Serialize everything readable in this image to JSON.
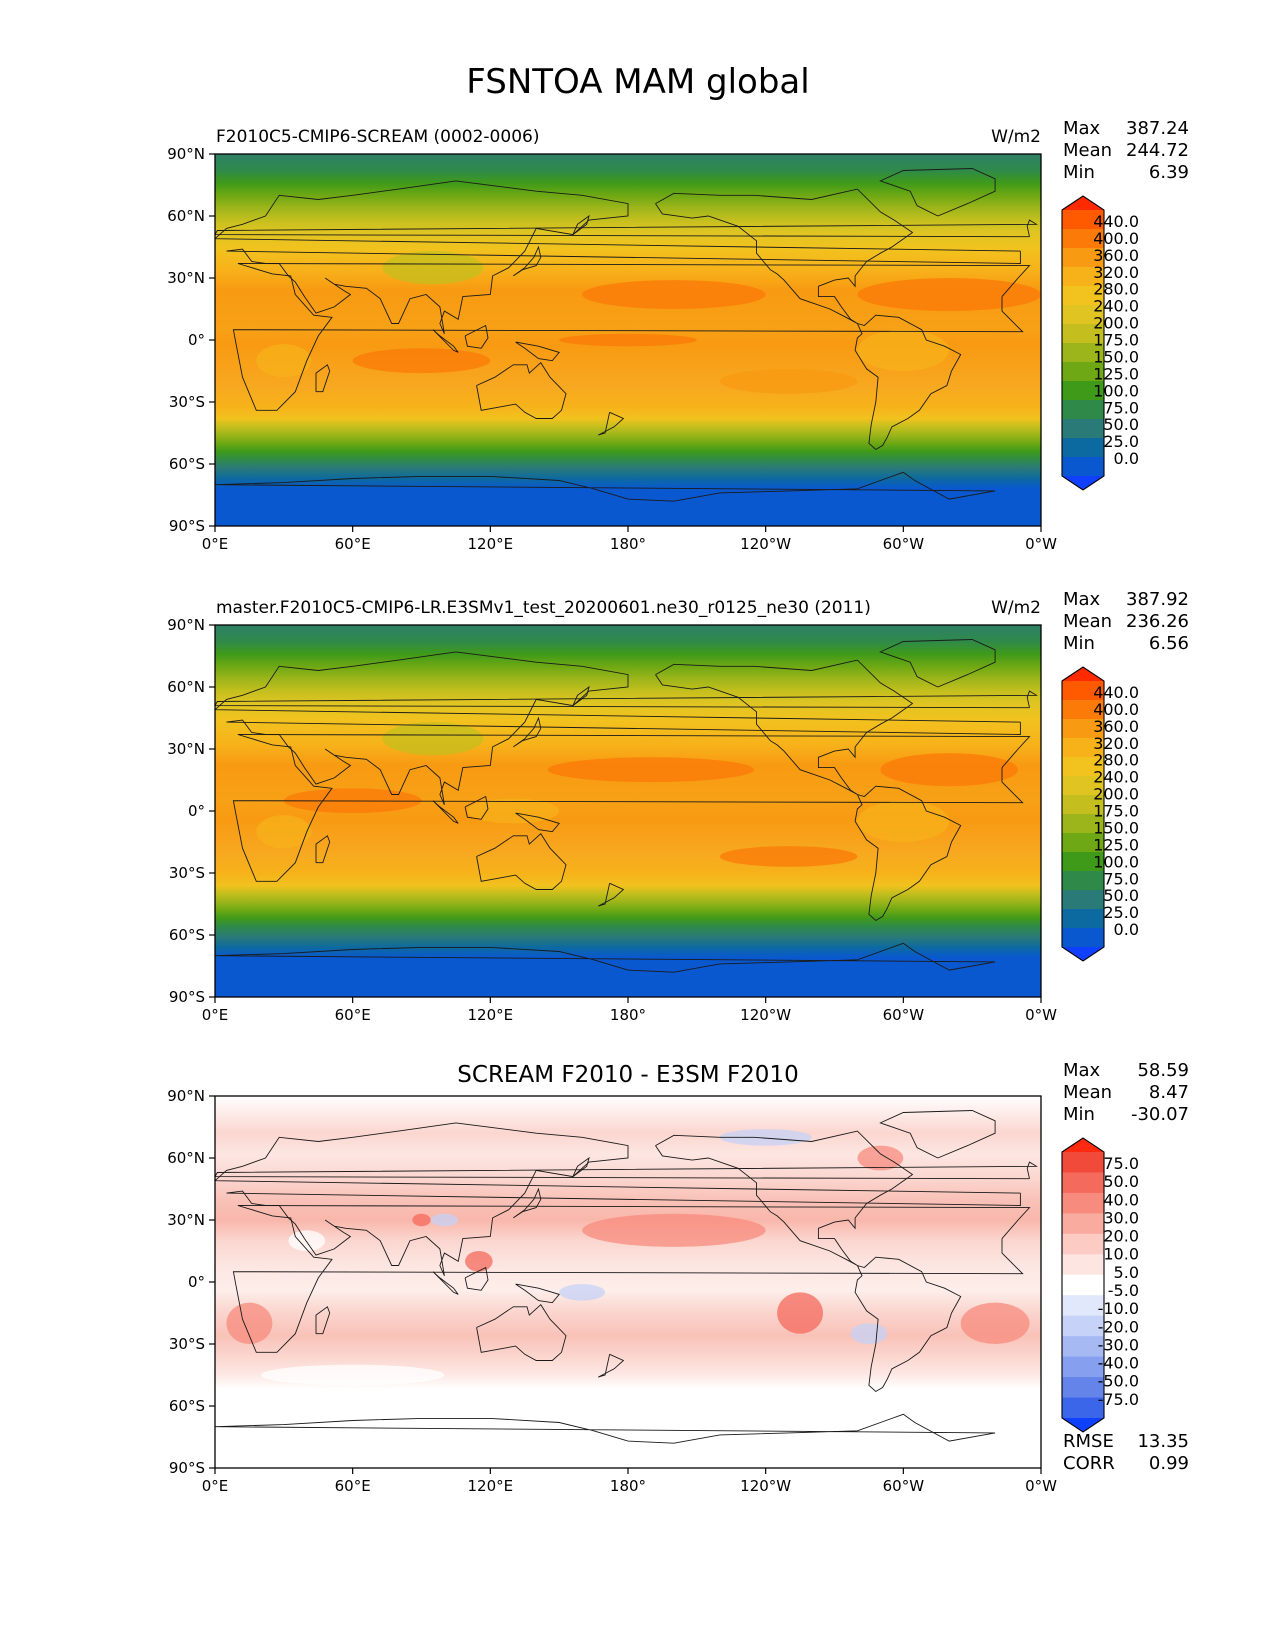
{
  "figure": {
    "title": "FSNTOA MAM global"
  },
  "axes": {
    "lat_ticks": [
      "90°N",
      "60°N",
      "30°N",
      "0°",
      "30°S",
      "60°S",
      "90°S"
    ],
    "lon_ticks": [
      "0°E",
      "60°E",
      "120°E",
      "180°",
      "120°W",
      "60°W",
      "0°W"
    ]
  },
  "panels": [
    {
      "id": "test",
      "title_left": "F2010C5-CMIP6-SCREAM (0002-0006)",
      "title_center": "",
      "units": "W/m2",
      "stats": [
        {
          "label": "Max",
          "value": "387.24"
        },
        {
          "label": "Mean",
          "value": "244.72"
        },
        {
          "label": "Min",
          "value": "6.39"
        }
      ],
      "colorbar_labels": [
        "440.0",
        "400.0",
        "360.0",
        "320.0",
        "280.0",
        "240.0",
        "200.0",
        "175.0",
        "150.0",
        "125.0",
        "100.0",
        "75.0",
        "50.0",
        "25.0",
        "0.0"
      ],
      "colorbar_colors": [
        "#ff2a00",
        "#ff5a00",
        "#fb7a08",
        "#f89a12",
        "#f7b21a",
        "#f2c21e",
        "#e0c522",
        "#c4bf1e",
        "#9cb51a",
        "#6ea814",
        "#3f9a1a",
        "#2f8a4a",
        "#2a7a78",
        "#0d6aa0",
        "#0a58d0",
        "#1040ff"
      ],
      "rows": [
        {
          "lat": 90,
          "c": "#2f7f66"
        },
        {
          "lat": 82,
          "c": "#2f8a4a"
        },
        {
          "lat": 76,
          "c": "#3f9a1a"
        },
        {
          "lat": 70,
          "c": "#6ea814"
        },
        {
          "lat": 64,
          "c": "#9cb51a"
        },
        {
          "lat": 58,
          "c": "#c4bf1e"
        },
        {
          "lat": 52,
          "c": "#e0c522"
        },
        {
          "lat": 44,
          "c": "#f2c21e"
        },
        {
          "lat": 34,
          "c": "#f7b21a"
        },
        {
          "lat": 24,
          "c": "#f89a12"
        },
        {
          "lat": 6,
          "c": "#f7a116"
        },
        {
          "lat": -2,
          "c": "#f89a12"
        },
        {
          "lat": -22,
          "c": "#f7a820"
        },
        {
          "lat": -32,
          "c": "#f7b21a"
        },
        {
          "lat": -38,
          "c": "#f2c21e"
        },
        {
          "lat": -42,
          "c": "#c4bf1e"
        },
        {
          "lat": -46,
          "c": "#9cb51a"
        },
        {
          "lat": -50,
          "c": "#6ea814"
        },
        {
          "lat": -54,
          "c": "#3f9a1a"
        },
        {
          "lat": -58,
          "c": "#2f8a4a"
        },
        {
          "lat": -62,
          "c": "#2a7a78"
        },
        {
          "lat": -67,
          "c": "#0d6aa0"
        },
        {
          "lat": -72,
          "c": "#0a58d0"
        },
        {
          "lat": -90,
          "c": "#0a58d0"
        }
      ]
    },
    {
      "id": "reference",
      "title_left": "master.F2010C5-CMIP6-LR.E3SMv1_test_20200601.ne30_r0125_ne30 (2011)",
      "title_center": "",
      "units": "W/m2",
      "stats": [
        {
          "label": "Max",
          "value": "387.92"
        },
        {
          "label": "Mean",
          "value": "236.26"
        },
        {
          "label": "Min",
          "value": "6.56"
        }
      ],
      "colorbar_labels": [
        "440.0",
        "400.0",
        "360.0",
        "320.0",
        "280.0",
        "240.0",
        "200.0",
        "175.0",
        "150.0",
        "125.0",
        "100.0",
        "75.0",
        "50.0",
        "25.0",
        "0.0"
      ],
      "colorbar_colors": [
        "#ff2a00",
        "#ff5a00",
        "#fb7a08",
        "#f89a12",
        "#f7b21a",
        "#f2c21e",
        "#e0c522",
        "#c4bf1e",
        "#9cb51a",
        "#6ea814",
        "#3f9a1a",
        "#2f8a4a",
        "#2a7a78",
        "#0d6aa0",
        "#0a58d0",
        "#1040ff"
      ],
      "rows": [
        {
          "lat": 90,
          "c": "#2f7f66"
        },
        {
          "lat": 82,
          "c": "#2f8a4a"
        },
        {
          "lat": 76,
          "c": "#3f9a1a"
        },
        {
          "lat": 70,
          "c": "#6ea814"
        },
        {
          "lat": 64,
          "c": "#9cb51a"
        },
        {
          "lat": 58,
          "c": "#c4bf1e"
        },
        {
          "lat": 52,
          "c": "#e0c522"
        },
        {
          "lat": 44,
          "c": "#f2c21e"
        },
        {
          "lat": 32,
          "c": "#f7b21a"
        },
        {
          "lat": 22,
          "c": "#f89a12"
        },
        {
          "lat": 6,
          "c": "#f7a116"
        },
        {
          "lat": -4,
          "c": "#f89a12"
        },
        {
          "lat": -20,
          "c": "#f7a820"
        },
        {
          "lat": -30,
          "c": "#f7b21a"
        },
        {
          "lat": -36,
          "c": "#f2c21e"
        },
        {
          "lat": -40,
          "c": "#c4bf1e"
        },
        {
          "lat": -44,
          "c": "#9cb51a"
        },
        {
          "lat": -48,
          "c": "#6ea814"
        },
        {
          "lat": -52,
          "c": "#3f9a1a"
        },
        {
          "lat": -56,
          "c": "#2f8a4a"
        },
        {
          "lat": -61,
          "c": "#2a7a78"
        },
        {
          "lat": -66,
          "c": "#0d6aa0"
        },
        {
          "lat": -71,
          "c": "#0a58d0"
        },
        {
          "lat": -90,
          "c": "#0a58d0"
        }
      ]
    },
    {
      "id": "difference",
      "title_left": "",
      "title_center": "SCREAM F2010 - E3SM F2010",
      "units": "",
      "stats": [
        {
          "label": "Max",
          "value": "58.59"
        },
        {
          "label": "Mean",
          "value": "8.47"
        },
        {
          "label": "Min",
          "value": "-30.07"
        }
      ],
      "colorbar_labels": [
        "75.0",
        "50.0",
        "40.0",
        "30.0",
        "20.0",
        "10.0",
        "5.0",
        "-5.0",
        "-10.0",
        "-20.0",
        "-30.0",
        "-40.0",
        "-50.0",
        "-75.0"
      ],
      "colorbar_colors": [
        "#ff2a10",
        "#f24a3a",
        "#f46a5c",
        "#f78b7e",
        "#f9ab9f",
        "#fcccc4",
        "#fde6e2",
        "#ffffff",
        "#e2e8fb",
        "#c6d2f7",
        "#a7b9f3",
        "#86a0ef",
        "#6484ea",
        "#3c66ea",
        "#1040ff"
      ],
      "rows": [
        {
          "lat": 90,
          "c": "#ffffff"
        },
        {
          "lat": 72,
          "c": "#fbd6cf"
        },
        {
          "lat": 62,
          "c": "#fde6e2"
        },
        {
          "lat": 50,
          "c": "#fbd6cf"
        },
        {
          "lat": 40,
          "c": "#f9c2b8"
        },
        {
          "lat": 30,
          "c": "#f9b7ab"
        },
        {
          "lat": 20,
          "c": "#fbd6cf"
        },
        {
          "lat": 8,
          "c": "#fde6e2"
        },
        {
          "lat": -4,
          "c": "#fdeeea"
        },
        {
          "lat": -14,
          "c": "#fbd6cf"
        },
        {
          "lat": -26,
          "c": "#f9c2b8"
        },
        {
          "lat": -36,
          "c": "#fbd6cf"
        },
        {
          "lat": -44,
          "c": "#fde6e2"
        },
        {
          "lat": -52,
          "c": "#ffffff"
        },
        {
          "lat": -90,
          "c": "#ffffff"
        }
      ],
      "footer_stats": [
        {
          "label": "RMSE",
          "value": "13.35"
        },
        {
          "label": "CORR",
          "value": "0.99"
        }
      ]
    }
  ]
}
